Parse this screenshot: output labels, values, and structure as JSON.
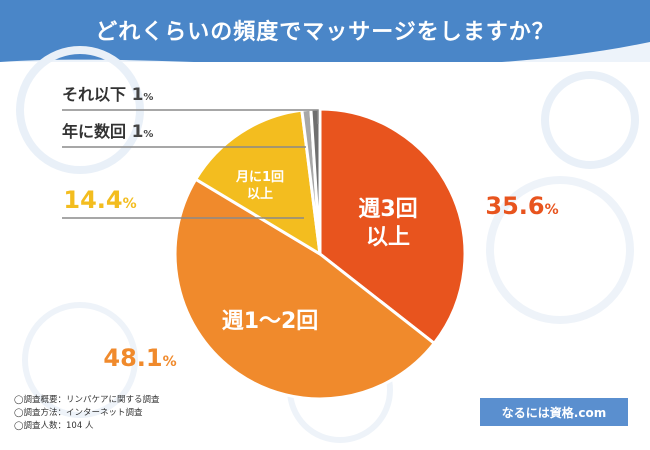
{
  "header": {
    "title": "どれくらいの頻度でマッサージをしますか？"
  },
  "chart_data": {
    "type": "pie",
    "title": "どれくらいの頻度でマッサージをしますか？",
    "slices": [
      {
        "label": "週3回\n以上",
        "value": 35.6,
        "value_label": "35.6",
        "color": "#e8541e",
        "label_color": "#ffffff"
      },
      {
        "label": "週1〜2回",
        "value": 48.1,
        "value_label": "48.1",
        "color": "#f08a2c",
        "label_color": "#ffffff"
      },
      {
        "label": "月に1回\n以上",
        "value": 14.4,
        "value_label": "14.4",
        "color": "#f3bd1f",
        "label_color": "#ffffff"
      },
      {
        "label": "年に数回",
        "value": 1,
        "value_label": "1",
        "color": "#a7a7a7",
        "label_color": "#444444"
      },
      {
        "label": "それ以下",
        "value": 1,
        "value_label": "1",
        "color": "#6f6f6f",
        "label_color": "#444444"
      }
    ],
    "percent_symbol": "%"
  },
  "notes": [
    "◯調査概要：リンパケアに関する調査",
    "◯調査方法：インターネット調査",
    "◯調査人数：104 人"
  ],
  "brand": "なるには資格.com"
}
